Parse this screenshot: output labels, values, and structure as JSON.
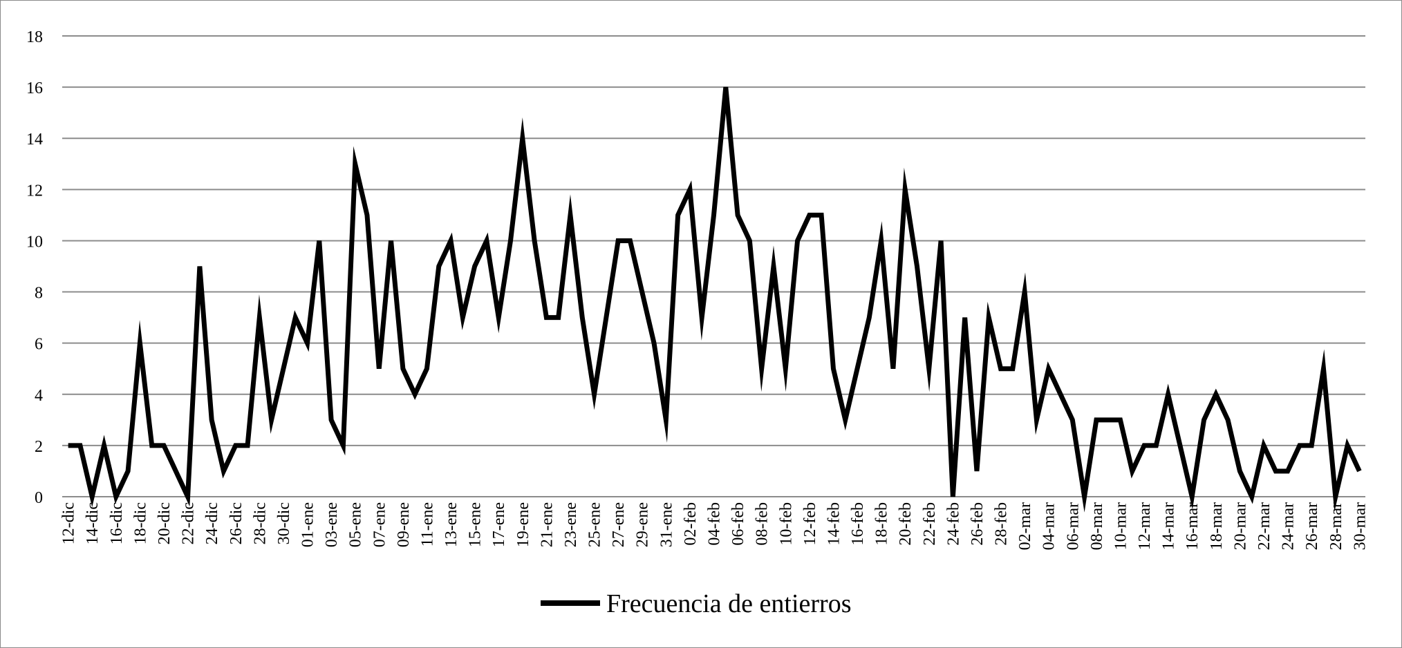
{
  "chart_data": {
    "type": "line",
    "title": "",
    "xlabel": "",
    "ylabel": "",
    "ylim": [
      0,
      18
    ],
    "yticks": [
      0,
      2,
      4,
      6,
      8,
      10,
      12,
      14,
      16,
      18
    ],
    "grid": true,
    "legend_position": "bottom-center",
    "line_color": "#000000",
    "grid_color": "#8c8c8c",
    "x_tick_labels": [
      "12-dic",
      "14-dic",
      "16-dic",
      "18-dic",
      "20-dic",
      "22-dic",
      "24-dic",
      "26-dic",
      "28-dic",
      "30-dic",
      "01-ene",
      "03-ene",
      "05-ene",
      "07-ene",
      "09-ene",
      "11-ene",
      "13-ene",
      "15-ene",
      "17-ene",
      "19-ene",
      "21-ene",
      "23-ene",
      "25-ene",
      "27-ene",
      "29-ene",
      "31-ene",
      "02-feb",
      "04-feb",
      "06-feb",
      "08-feb",
      "10-feb",
      "12-feb",
      "14-feb",
      "16-feb",
      "18-feb",
      "20-feb",
      "22-feb",
      "24-feb",
      "26-feb",
      "28-feb",
      "02-mar",
      "04-mar",
      "06-mar",
      "08-mar",
      "10-mar",
      "12-mar",
      "14-mar",
      "16-mar",
      "18-mar",
      "20-mar",
      "22-mar",
      "24-mar",
      "26-mar",
      "28-mar",
      "30-mar"
    ],
    "series": [
      {
        "name": "Frecuencia de entierros",
        "values": [
          2,
          2,
          0,
          2,
          0,
          1,
          6,
          2,
          2,
          1,
          0,
          9,
          3,
          1,
          2,
          2,
          7,
          3,
          5,
          7,
          6,
          10,
          3,
          2,
          13,
          11,
          5,
          10,
          5,
          4,
          5,
          9,
          10,
          7,
          9,
          10,
          7,
          10,
          14,
          10,
          7,
          7,
          11,
          7,
          4,
          7,
          10,
          10,
          8,
          6,
          3,
          11,
          12,
          7,
          11,
          16,
          11,
          10,
          5,
          9,
          5,
          10,
          11,
          11,
          5,
          3,
          5,
          7,
          10,
          5,
          12,
          9,
          5,
          10,
          0,
          7,
          1,
          7,
          5,
          5,
          8,
          3,
          5,
          4,
          3,
          0,
          3,
          3,
          3,
          1,
          2,
          2,
          4,
          2,
          0,
          3,
          4,
          3,
          1,
          0,
          2,
          1,
          1,
          2,
          2,
          5,
          0,
          2,
          1
        ]
      }
    ]
  }
}
